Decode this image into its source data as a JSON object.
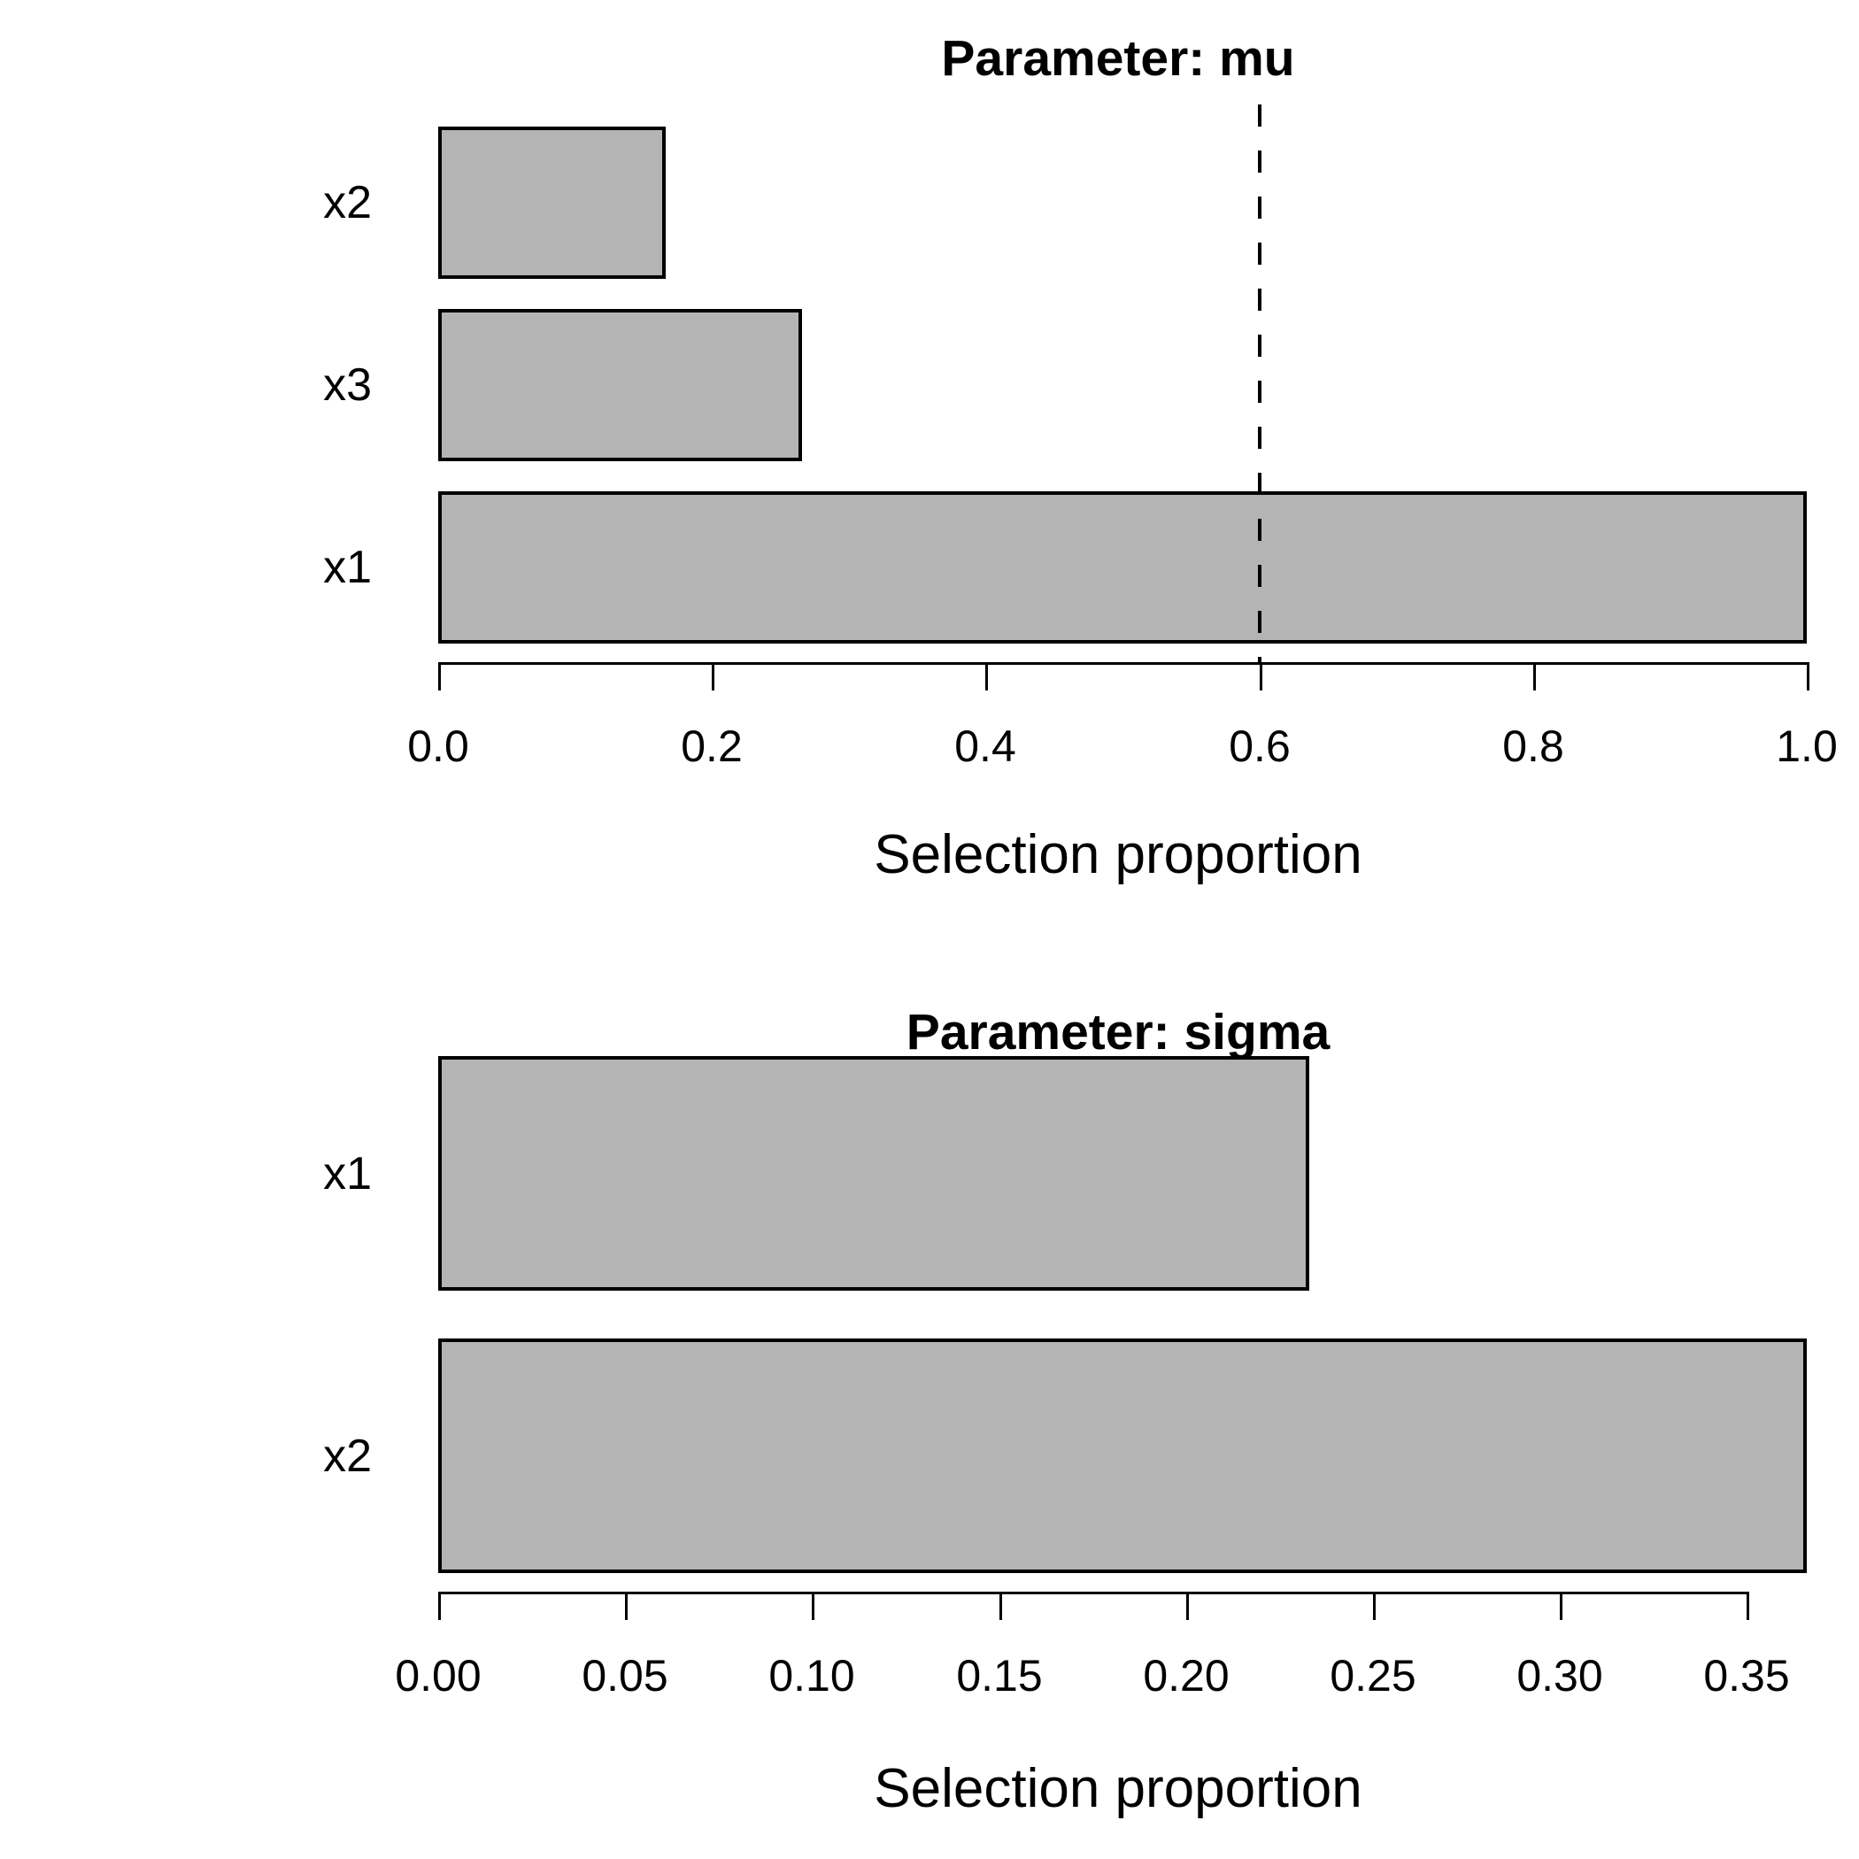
{
  "figure": {
    "background": "#ffffff",
    "bar_fill": "#b4b4b4",
    "bar_border": "#000000",
    "axis_color": "#000000",
    "threshold_color": "#000000"
  },
  "chart_data": [
    {
      "type": "bar",
      "orientation": "horizontal",
      "title": "Parameter: mu",
      "xlabel": "Selection proportion",
      "categories": [
        "x2",
        "x3",
        "x1"
      ],
      "values": [
        0.166,
        0.266,
        1.0
      ],
      "xlim": [
        0,
        1.0
      ],
      "xticks": [
        0.0,
        0.2,
        0.4,
        0.6,
        0.8,
        1.0
      ],
      "xtick_labels": [
        "0.0",
        "0.2",
        "0.4",
        "0.6",
        "0.8",
        "1.0"
      ],
      "threshold": 0.6,
      "threshold_style": "dashed",
      "grid": false,
      "legend": "none"
    },
    {
      "type": "bar",
      "orientation": "horizontal",
      "title": "Parameter: sigma",
      "xlabel": "Selection proportion",
      "categories": [
        "x1",
        "x2"
      ],
      "values": [
        0.233,
        0.366
      ],
      "xlim": [
        0,
        0.366
      ],
      "xticks": [
        0.0,
        0.05,
        0.1,
        0.15,
        0.2,
        0.25,
        0.3,
        0.35
      ],
      "xtick_labels": [
        "0.00",
        "0.05",
        "0.10",
        "0.15",
        "0.20",
        "0.25",
        "0.30",
        "0.35"
      ],
      "threshold": null,
      "threshold_style": "none",
      "grid": false,
      "legend": "none"
    }
  ]
}
